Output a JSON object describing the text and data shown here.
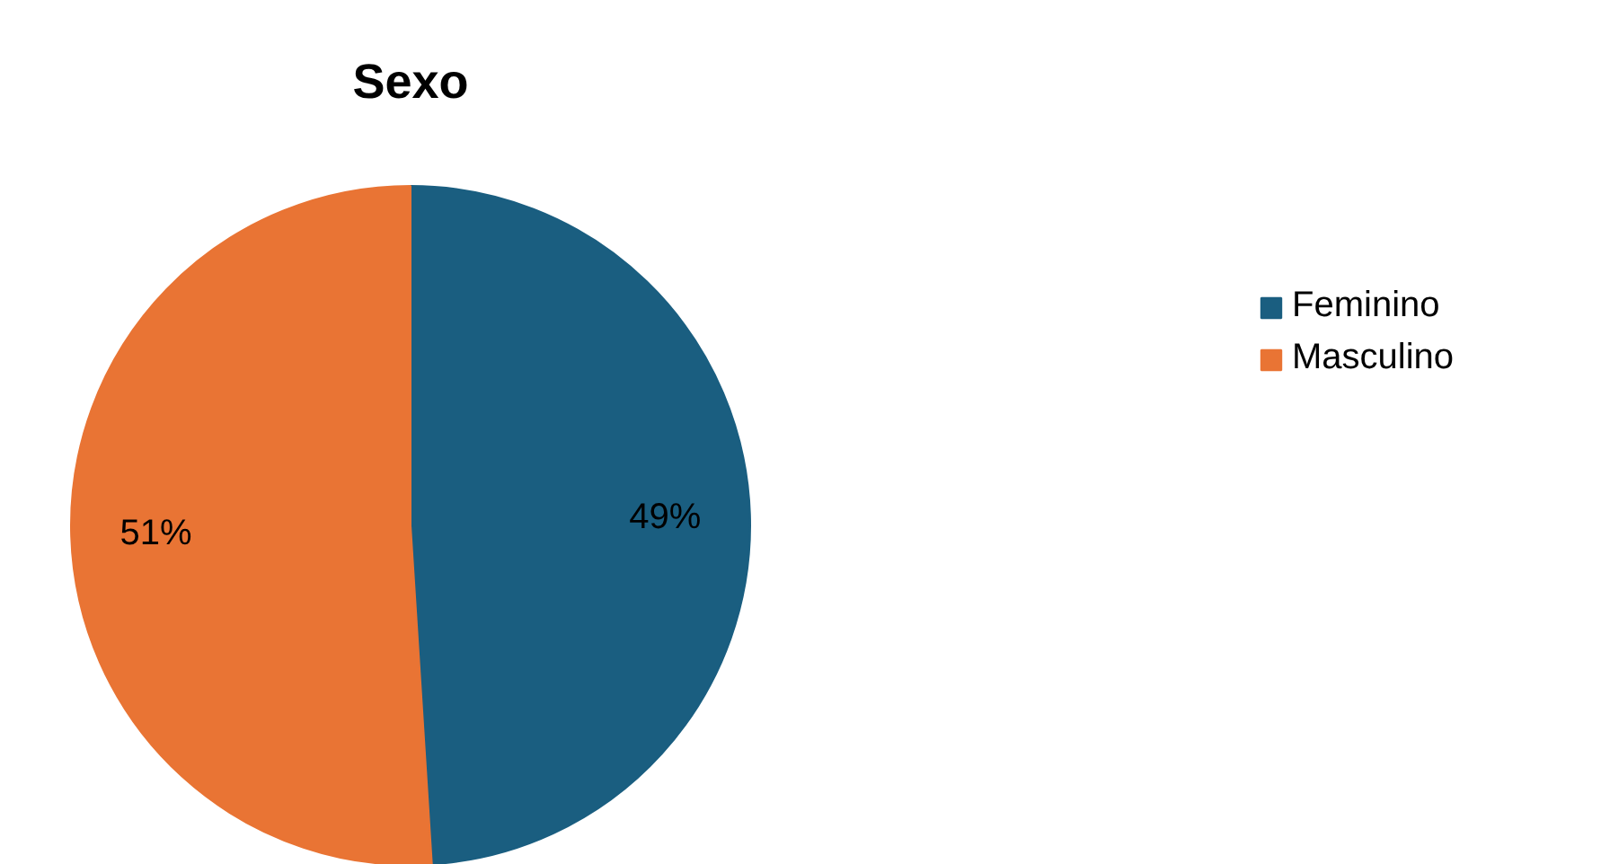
{
  "chart_data": {
    "type": "pie",
    "title": "Sexo",
    "categories": [
      "Feminino",
      "Masculino"
    ],
    "values": [
      49,
      51
    ],
    "colors": [
      "#1a5e80",
      "#e97434"
    ],
    "value_labels": [
      "49%",
      "51%"
    ],
    "legend": "right"
  }
}
